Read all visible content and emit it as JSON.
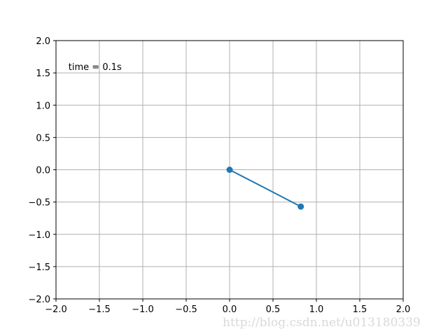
{
  "chart_data": {
    "type": "line",
    "title": "",
    "xlabel": "",
    "ylabel": "",
    "xlim": [
      -2.0,
      2.0
    ],
    "ylim": [
      -2.0,
      2.0
    ],
    "grid": true,
    "x_ticks": [
      "−2.0",
      "−1.5",
      "−1.0",
      "−0.5",
      "0.0",
      "0.5",
      "1.0",
      "1.5",
      "2.0"
    ],
    "y_ticks": [
      "−2.0",
      "−1.5",
      "−1.0",
      "−0.5",
      "0.0",
      "0.5",
      "1.0",
      "1.5",
      "2.0"
    ],
    "series": [
      {
        "x": [
          0.0,
          0.82
        ],
        "y": [
          0.0,
          -0.57
        ],
        "color": "#1f77b4",
        "marker": "circle"
      }
    ],
    "annotations": [
      {
        "text": "time = 0.1s",
        "x": -1.8,
        "y": 1.6
      }
    ]
  },
  "watermark": "http://blog.csdn.net/u013180339",
  "colors": {
    "grid": "#b0b0b0",
    "axes": "#000000",
    "line": "#1f77b4"
  }
}
